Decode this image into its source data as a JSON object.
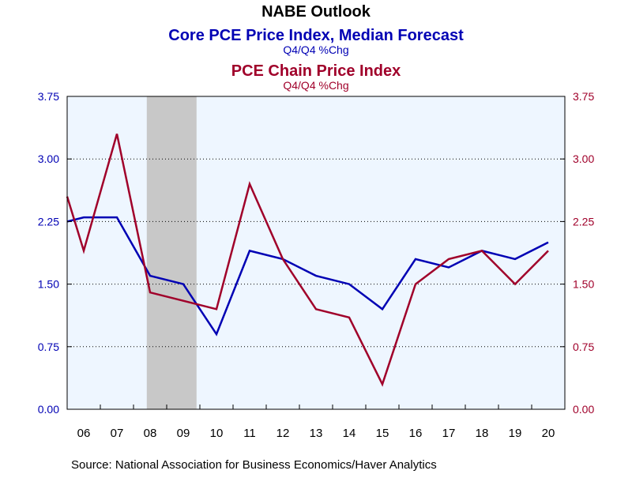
{
  "chart_data": {
    "type": "line",
    "title": "NABE Outlook",
    "series_titles": [
      {
        "title": "Core PCE Price Index, Median Forecast",
        "subtitle": "Q4/Q4 %Chg",
        "color": "#0000b4"
      },
      {
        "title": "PCE Chain Price Index",
        "subtitle": "Q4/Q4 %Chg",
        "color": "#a0002a"
      }
    ],
    "source": "Source:  National Association for Business Economics/Haver Analytics",
    "x": [
      2006,
      2007,
      2008,
      2009,
      2010,
      2011,
      2012,
      2013,
      2014,
      2015,
      2016,
      2017,
      2018,
      2019,
      2020
    ],
    "xtick_labels": [
      "06",
      "07",
      "08",
      "09",
      "10",
      "11",
      "12",
      "13",
      "14",
      "15",
      "16",
      "17",
      "18",
      "19",
      "20"
    ],
    "ylim": [
      0,
      3.75
    ],
    "yticks": [
      "0.00",
      "0.75",
      "1.50",
      "2.25",
      "3.00",
      "3.75"
    ],
    "recession": {
      "start": 2007.9,
      "end": 2009.4,
      "color": "#c8c8c8"
    },
    "plot_background": "#eef6ff",
    "series": [
      {
        "color": "#0000b4",
        "points": [
          [
            2005.5,
            2.25
          ],
          [
            2006,
            2.3
          ],
          [
            2007,
            2.3
          ],
          [
            2008,
            1.6
          ],
          [
            2009,
            1.5
          ],
          [
            2010,
            0.9
          ],
          [
            2011,
            1.9
          ],
          [
            2012,
            1.8
          ],
          [
            2013,
            1.6
          ],
          [
            2014,
            1.5
          ],
          [
            2015,
            1.2
          ],
          [
            2016,
            1.8
          ],
          [
            2017,
            1.7
          ],
          [
            2018,
            1.9
          ],
          [
            2019,
            1.8
          ],
          [
            2020,
            2.0
          ]
        ]
      },
      {
        "color": "#a0002a",
        "points": [
          [
            2005.5,
            2.55
          ],
          [
            2006,
            1.9
          ],
          [
            2007,
            3.3
          ],
          [
            2008,
            1.4
          ],
          [
            2009,
            1.3
          ],
          [
            2010,
            1.2
          ],
          [
            2011,
            2.7
          ],
          [
            2012,
            1.8
          ],
          [
            2013,
            1.2
          ],
          [
            2014,
            1.1
          ],
          [
            2015,
            0.3
          ],
          [
            2016,
            1.5
          ],
          [
            2017,
            1.8
          ],
          [
            2018,
            1.9
          ],
          [
            2019,
            1.5
          ],
          [
            2020,
            1.9
          ]
        ]
      }
    ]
  }
}
